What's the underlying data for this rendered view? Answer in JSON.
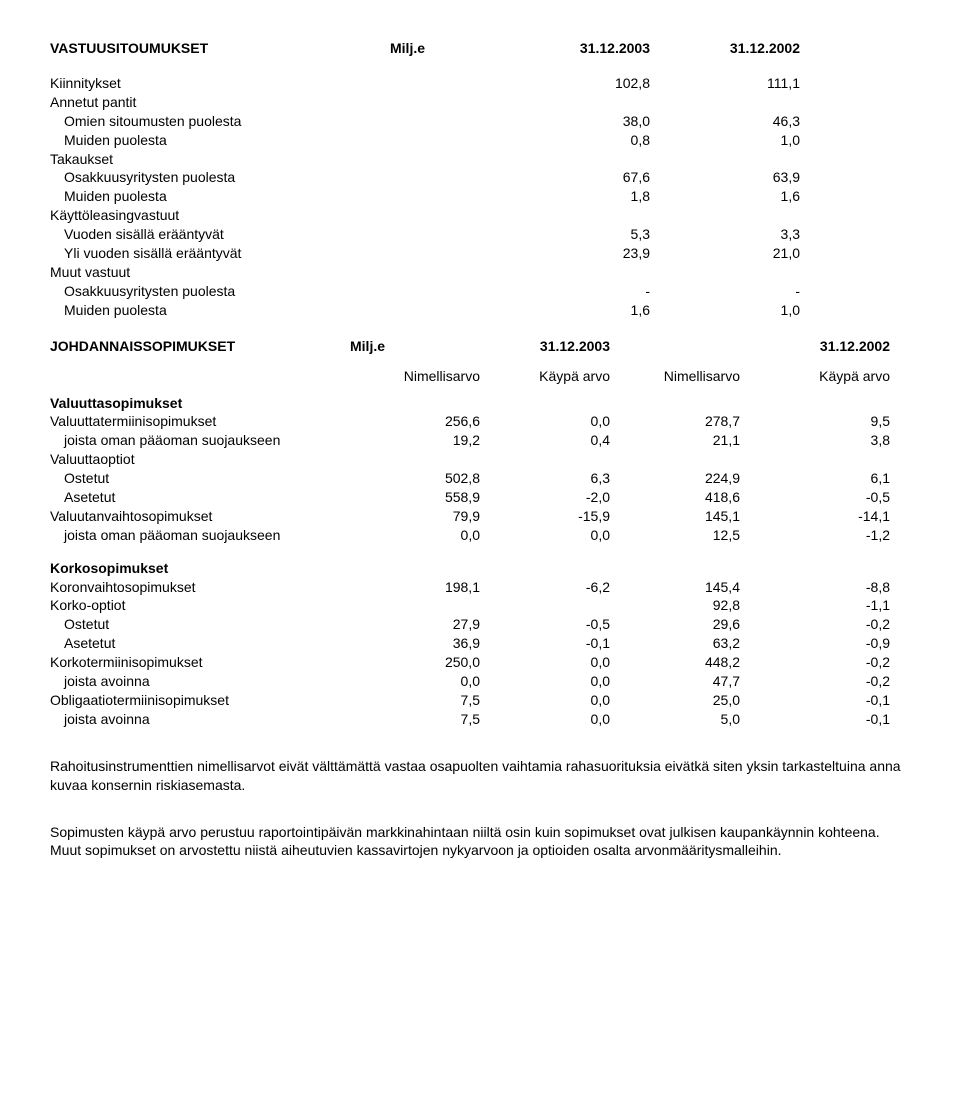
{
  "section1": {
    "title": "VASTUUSITOUMUKSET",
    "unit": "Milj.e",
    "col1": "31.12.2003",
    "col2": "31.12.2002",
    "rows": [
      {
        "label": "Kiinnitykset",
        "indent": false,
        "bold": false,
        "v1": "102,8",
        "v2": "111,1"
      },
      {
        "label": "Annetut pantit",
        "indent": false,
        "bold": false,
        "v1": "",
        "v2": ""
      },
      {
        "label": "Omien sitoumusten puolesta",
        "indent": true,
        "bold": false,
        "v1": "38,0",
        "v2": "46,3"
      },
      {
        "label": "Muiden puolesta",
        "indent": true,
        "bold": false,
        "v1": "0,8",
        "v2": "1,0"
      },
      {
        "label": "Takaukset",
        "indent": false,
        "bold": false,
        "v1": "",
        "v2": ""
      },
      {
        "label": "Osakkuusyritysten puolesta",
        "indent": true,
        "bold": false,
        "v1": "67,6",
        "v2": "63,9"
      },
      {
        "label": "Muiden puolesta",
        "indent": true,
        "bold": false,
        "v1": "1,8",
        "v2": "1,6"
      },
      {
        "label": "Käyttöleasingvastuut",
        "indent": false,
        "bold": false,
        "v1": "",
        "v2": ""
      },
      {
        "label": "Vuoden sisällä erääntyvät",
        "indent": true,
        "bold": false,
        "v1": "5,3",
        "v2": "3,3"
      },
      {
        "label": "Yli vuoden sisällä erääntyvät",
        "indent": true,
        "bold": false,
        "v1": "23,9",
        "v2": "21,0"
      },
      {
        "label": "Muut vastuut",
        "indent": false,
        "bold": false,
        "v1": "",
        "v2": ""
      },
      {
        "label": "Osakkuusyritysten puolesta",
        "indent": true,
        "bold": false,
        "v1": "-",
        "v2": "-"
      },
      {
        "label": "Muiden puolesta",
        "indent": true,
        "bold": false,
        "v1": "1,6",
        "v2": "1,0"
      }
    ]
  },
  "section2": {
    "title": "JOHDANNAISSOPIMUKSET",
    "unit": "Milj.e",
    "col1": "31.12.2003",
    "col2": "31.12.2002",
    "sub_headers": [
      "Nimellisarvo",
      "Käypä arvo",
      "Nimellisarvo",
      "Käypä arvo"
    ],
    "group_a": [
      {
        "label": "Valuuttasopimukset",
        "indent": false,
        "bold": true,
        "v1": "",
        "v2": "",
        "v3": "",
        "v4": ""
      },
      {
        "label": "Valuuttatermiinisopimukset",
        "indent": false,
        "bold": false,
        "v1": "256,6",
        "v2": "0,0",
        "v3": "278,7",
        "v4": "9,5"
      },
      {
        "label": "joista oman pääoman suojaukseen",
        "indent": true,
        "bold": false,
        "v1": "19,2",
        "v2": "0,4",
        "v3": "21,1",
        "v4": "3,8"
      },
      {
        "label": "Valuuttaoptiot",
        "indent": false,
        "bold": false,
        "v1": "",
        "v2": "",
        "v3": "",
        "v4": ""
      },
      {
        "label": "Ostetut",
        "indent": true,
        "bold": false,
        "v1": "502,8",
        "v2": "6,3",
        "v3": "224,9",
        "v4": "6,1"
      },
      {
        "label": "Asetetut",
        "indent": true,
        "bold": false,
        "v1": "558,9",
        "v2": "-2,0",
        "v3": "418,6",
        "v4": "-0,5"
      },
      {
        "label": "Valuutanvaihtosopimukset",
        "indent": false,
        "bold": false,
        "v1": "79,9",
        "v2": "-15,9",
        "v3": "145,1",
        "v4": "-14,1"
      },
      {
        "label": "joista oman pääoman suojaukseen",
        "indent": true,
        "bold": false,
        "v1": "0,0",
        "v2": "0,0",
        "v3": "12,5",
        "v4": "-1,2"
      }
    ],
    "group_b": [
      {
        "label": "Korkosopimukset",
        "indent": false,
        "bold": true,
        "v1": "",
        "v2": "",
        "v3": "",
        "v4": ""
      },
      {
        "label": "Koronvaihtosopimukset",
        "indent": false,
        "bold": false,
        "v1": "198,1",
        "v2": "-6,2",
        "v3": "145,4",
        "v4": "-8,8"
      },
      {
        "label": "Korko-optiot",
        "indent": false,
        "bold": false,
        "v1": "",
        "v2": "",
        "v3": "92,8",
        "v4": "-1,1"
      },
      {
        "label": "Ostetut",
        "indent": true,
        "bold": false,
        "v1": "27,9",
        "v2": "-0,5",
        "v3": "29,6",
        "v4": "-0,2"
      },
      {
        "label": "Asetetut",
        "indent": true,
        "bold": false,
        "v1": "36,9",
        "v2": "-0,1",
        "v3": "63,2",
        "v4": "-0,9"
      },
      {
        "label": "Korkotermiinisopimukset",
        "indent": false,
        "bold": false,
        "v1": "250,0",
        "v2": "0,0",
        "v3": "448,2",
        "v4": "-0,2"
      },
      {
        "label": "joista avoinna",
        "indent": true,
        "bold": false,
        "v1": "0,0",
        "v2": "0,0",
        "v3": "47,7",
        "v4": "-0,2"
      },
      {
        "label": "Obligaatiotermiinisopimukset",
        "indent": false,
        "bold": false,
        "v1": "7,5",
        "v2": "0,0",
        "v3": "25,0",
        "v4": "-0,1"
      },
      {
        "label": "joista avoinna",
        "indent": true,
        "bold": false,
        "v1": "7,5",
        "v2": "0,0",
        "v3": "5,0",
        "v4": "-0,1"
      }
    ]
  },
  "paragraphs": {
    "p1": "Rahoitusinstrumenttien nimellisarvot eivät välttämättä vastaa osapuolten vaihtamia rahasuorituksia eivätkä siten yksin tarkasteltuina anna kuvaa konsernin riskiasemasta.",
    "p2": "Sopimusten käypä arvo perustuu raportointipäivän markkinahintaan niiltä osin kuin sopimukset ovat julkisen kaupankäynnin kohteena. Muut sopimukset on arvostettu niistä aiheutuvien kassavirtojen nykyarvoon ja optioiden osalta arvonmääritysmalleihin."
  }
}
